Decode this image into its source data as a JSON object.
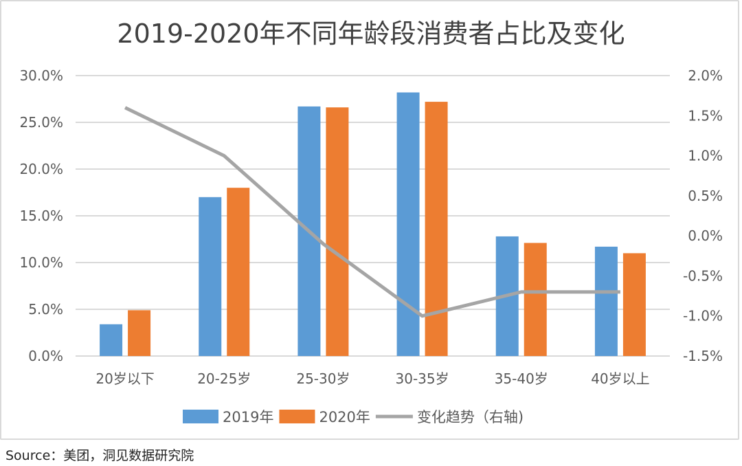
{
  "chart_data": {
    "type": "bar",
    "title": "2019-2020年不同年龄段消费者占比及变化",
    "categories": [
      "20岁以下",
      "20-25岁",
      "25-30岁",
      "30-35岁",
      "35-40岁",
      "40岁以上"
    ],
    "series": [
      {
        "name": "2019年",
        "type": "bar",
        "axis": "left",
        "color": "#5b9bd5",
        "values": [
          3.4,
          17.0,
          26.7,
          28.2,
          12.8,
          11.7
        ]
      },
      {
        "name": "2020年",
        "type": "bar",
        "axis": "left",
        "color": "#ed7d31",
        "values": [
          4.9,
          18.0,
          26.6,
          27.2,
          12.1,
          11.0
        ]
      },
      {
        "name": "变化趋势（右轴)",
        "type": "line",
        "axis": "right",
        "color": "#a5a5a5",
        "values": [
          1.6,
          1.0,
          -0.1,
          -1.0,
          -0.7,
          -0.7
        ]
      }
    ],
    "left_axis": {
      "ylim": [
        0,
        30
      ],
      "ticks": [
        "0.0%",
        "5.0%",
        "10.0%",
        "15.0%",
        "20.0%",
        "25.0%",
        "30.0%"
      ]
    },
    "right_axis": {
      "ylim": [
        -1.5,
        2.0
      ],
      "ticks": [
        "-1.5%",
        "-1.0%",
        "-0.5%",
        "0.0%",
        "0.5%",
        "1.0%",
        "1.5%",
        "2.0%"
      ]
    },
    "grid": true,
    "legend_position": "bottom"
  },
  "source": "Source：美团，洞见数据研究院"
}
